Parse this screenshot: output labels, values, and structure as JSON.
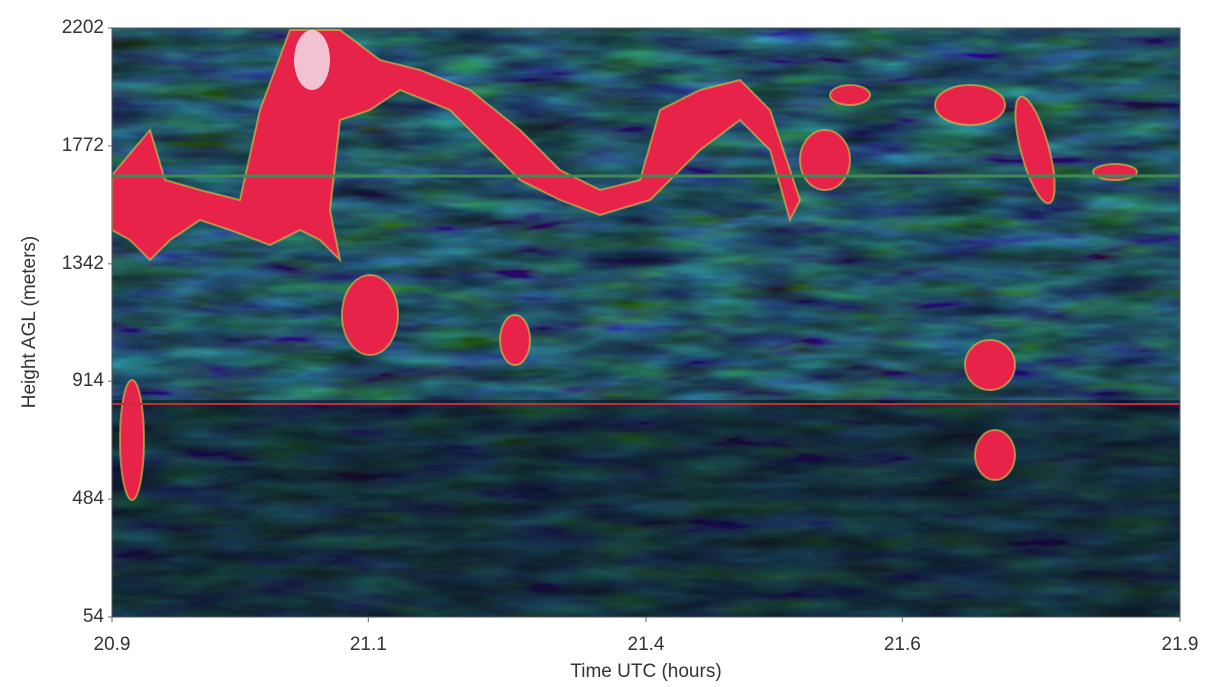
{
  "chart_data": {
    "type": "image",
    "x_label": "Time UTC (hours)",
    "y_label": "Height AGL (meters)",
    "xlim": [
      20.9,
      21.9
    ],
    "xticks": [
      20.9,
      {
        "value": 21.14,
        "label": "21.1"
      },
      21.4,
      {
        "value": 21.64,
        "label": "21.6"
      },
      21.9
    ],
    "ylim": [
      54,
      2202
    ],
    "yticks": [
      54,
      484,
      914,
      1342,
      1772,
      2202
    ]
  }
}
